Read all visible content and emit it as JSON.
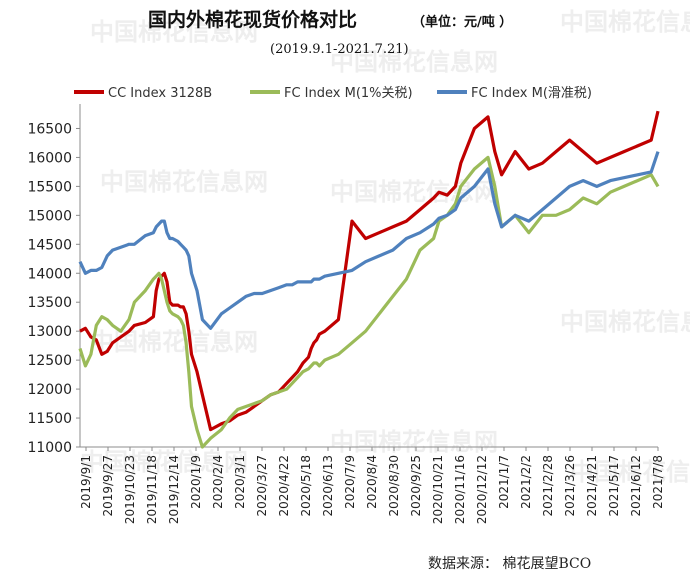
{
  "title": "国内外棉花现货价格对比",
  "unit": "（单位：元/吨 ）",
  "subtitle": "(2019.9.1-2021.7.21)",
  "source": "数据来源：   棉花展望BCO",
  "watermark": "中国棉花信息网",
  "chart_data": {
    "type": "line",
    "ylim": [
      11000,
      16750
    ],
    "yticks": [
      11000,
      11500,
      12000,
      12500,
      13000,
      13500,
      14000,
      14500,
      15000,
      15500,
      16000,
      16500
    ],
    "x_tick_labels": [
      "2019/9/1",
      "2019/9/27",
      "2019/10/23",
      "2019/11/18",
      "2019/12/14",
      "2020/1/9",
      "2020/2/4",
      "2020/3/1",
      "2020/3/27",
      "2020/4/22",
      "2020/5/18",
      "2020/6/13",
      "2020/7/9",
      "2020/8/4",
      "2020/8/30",
      "2020/9/25",
      "2020/10/21",
      "2020/11/16",
      "2020/12/12",
      "2021/1/7",
      "2021/2/2",
      "2021/2/28",
      "2021/3/26",
      "2021/4/21",
      "2021/5/17",
      "2021/6/12",
      "2021/7/8"
    ],
    "series": [
      {
        "name": "CC Index 3128B",
        "color": "#c00000",
        "x": [
          0,
          4,
          8,
          12,
          16,
          20,
          24,
          30,
          36,
          40,
          48,
          54,
          56,
          58,
          60,
          62,
          64,
          66,
          68,
          72,
          74,
          76,
          78,
          80,
          82,
          86,
          90,
          96,
          104,
          110,
          116,
          122,
          128,
          134,
          140,
          146,
          152,
          156,
          160,
          164,
          168,
          170,
          172,
          174,
          176,
          180,
          190,
          200,
          210,
          220,
          230,
          240,
          250,
          260,
          264,
          270,
          276,
          280,
          290,
          300,
          305,
          310,
          320,
          330,
          340,
          350,
          360,
          370,
          380,
          390,
          400,
          410,
          420,
          425
        ],
        "values": [
          13000,
          13050,
          12900,
          12850,
          12600,
          12650,
          12800,
          12900,
          13000,
          13100,
          13150,
          13250,
          13700,
          13900,
          13950,
          14000,
          13850,
          13500,
          13450,
          13450,
          13420,
          13420,
          13300,
          13000,
          12600,
          12300,
          11900,
          11300,
          11400,
          11450,
          11550,
          11600,
          11700,
          11800,
          11900,
          11950,
          12100,
          12200,
          12300,
          12450,
          12550,
          12700,
          12800,
          12850,
          12950,
          13000,
          13200,
          14900,
          14600,
          14700,
          14800,
          14900,
          15100,
          15300,
          15400,
          15350,
          15500,
          15900,
          16500,
          16700,
          16100,
          15700,
          16100,
          15800,
          15900,
          16100,
          16300,
          16100,
          15900,
          16000,
          16100,
          16200,
          16300,
          16800
        ]
      },
      {
        "name": "FC Index M(1%关税)",
        "color": "#9bbb59",
        "x": [
          0,
          4,
          8,
          12,
          16,
          20,
          24,
          30,
          36,
          40,
          48,
          54,
          56,
          58,
          60,
          62,
          64,
          66,
          68,
          72,
          74,
          76,
          78,
          80,
          82,
          86,
          90,
          96,
          104,
          110,
          116,
          122,
          128,
          134,
          140,
          146,
          152,
          156,
          160,
          164,
          168,
          170,
          172,
          174,
          176,
          180,
          190,
          200,
          210,
          220,
          230,
          240,
          250,
          260,
          264,
          270,
          276,
          280,
          290,
          300,
          305,
          310,
          320,
          330,
          340,
          350,
          360,
          370,
          380,
          390,
          400,
          410,
          420,
          425
        ],
        "values": [
          12700,
          12400,
          12600,
          13100,
          13250,
          13200,
          13100,
          13000,
          13200,
          13500,
          13700,
          13900,
          13950,
          14000,
          13900,
          13700,
          13500,
          13350,
          13300,
          13250,
          13200,
          13100,
          12800,
          12300,
          11700,
          11300,
          11000,
          11150,
          11300,
          11500,
          11650,
          11700,
          11750,
          11800,
          11900,
          11950,
          12000,
          12100,
          12200,
          12300,
          12350,
          12400,
          12450,
          12450,
          12400,
          12500,
          12600,
          12800,
          13000,
          13300,
          13600,
          13900,
          14400,
          14600,
          14900,
          15000,
          15200,
          15500,
          15800,
          16000,
          15500,
          14800,
          15000,
          14700,
          15000,
          15000,
          15100,
          15300,
          15200,
          15400,
          15500,
          15600,
          15700,
          15500
        ]
      },
      {
        "name": "FC Index M(滑准税)",
        "color": "#4f81bd",
        "x": [
          0,
          4,
          8,
          12,
          16,
          20,
          24,
          30,
          36,
          40,
          48,
          54,
          56,
          58,
          60,
          62,
          64,
          66,
          68,
          72,
          74,
          76,
          78,
          80,
          82,
          86,
          90,
          96,
          104,
          110,
          116,
          122,
          128,
          134,
          140,
          146,
          152,
          156,
          160,
          164,
          168,
          170,
          172,
          174,
          176,
          180,
          190,
          200,
          210,
          220,
          230,
          240,
          250,
          260,
          264,
          270,
          276,
          280,
          290,
          300,
          305,
          310,
          320,
          330,
          340,
          350,
          360,
          370,
          380,
          390,
          400,
          410,
          420,
          425
        ],
        "values": [
          14200,
          14000,
          14050,
          14050,
          14100,
          14300,
          14400,
          14450,
          14500,
          14500,
          14650,
          14700,
          14800,
          14850,
          14900,
          14900,
          14700,
          14600,
          14600,
          14550,
          14500,
          14450,
          14400,
          14300,
          14000,
          13700,
          13200,
          13050,
          13300,
          13400,
          13500,
          13600,
          13650,
          13650,
          13700,
          13750,
          13800,
          13800,
          13850,
          13850,
          13850,
          13850,
          13900,
          13900,
          13900,
          13950,
          14000,
          14050,
          14200,
          14300,
          14400,
          14600,
          14700,
          14850,
          14950,
          15000,
          15100,
          15300,
          15500,
          15800,
          15200,
          14800,
          15000,
          14900,
          15100,
          15300,
          15500,
          15600,
          15500,
          15600,
          15650,
          15700,
          15750,
          16100
        ]
      }
    ]
  }
}
